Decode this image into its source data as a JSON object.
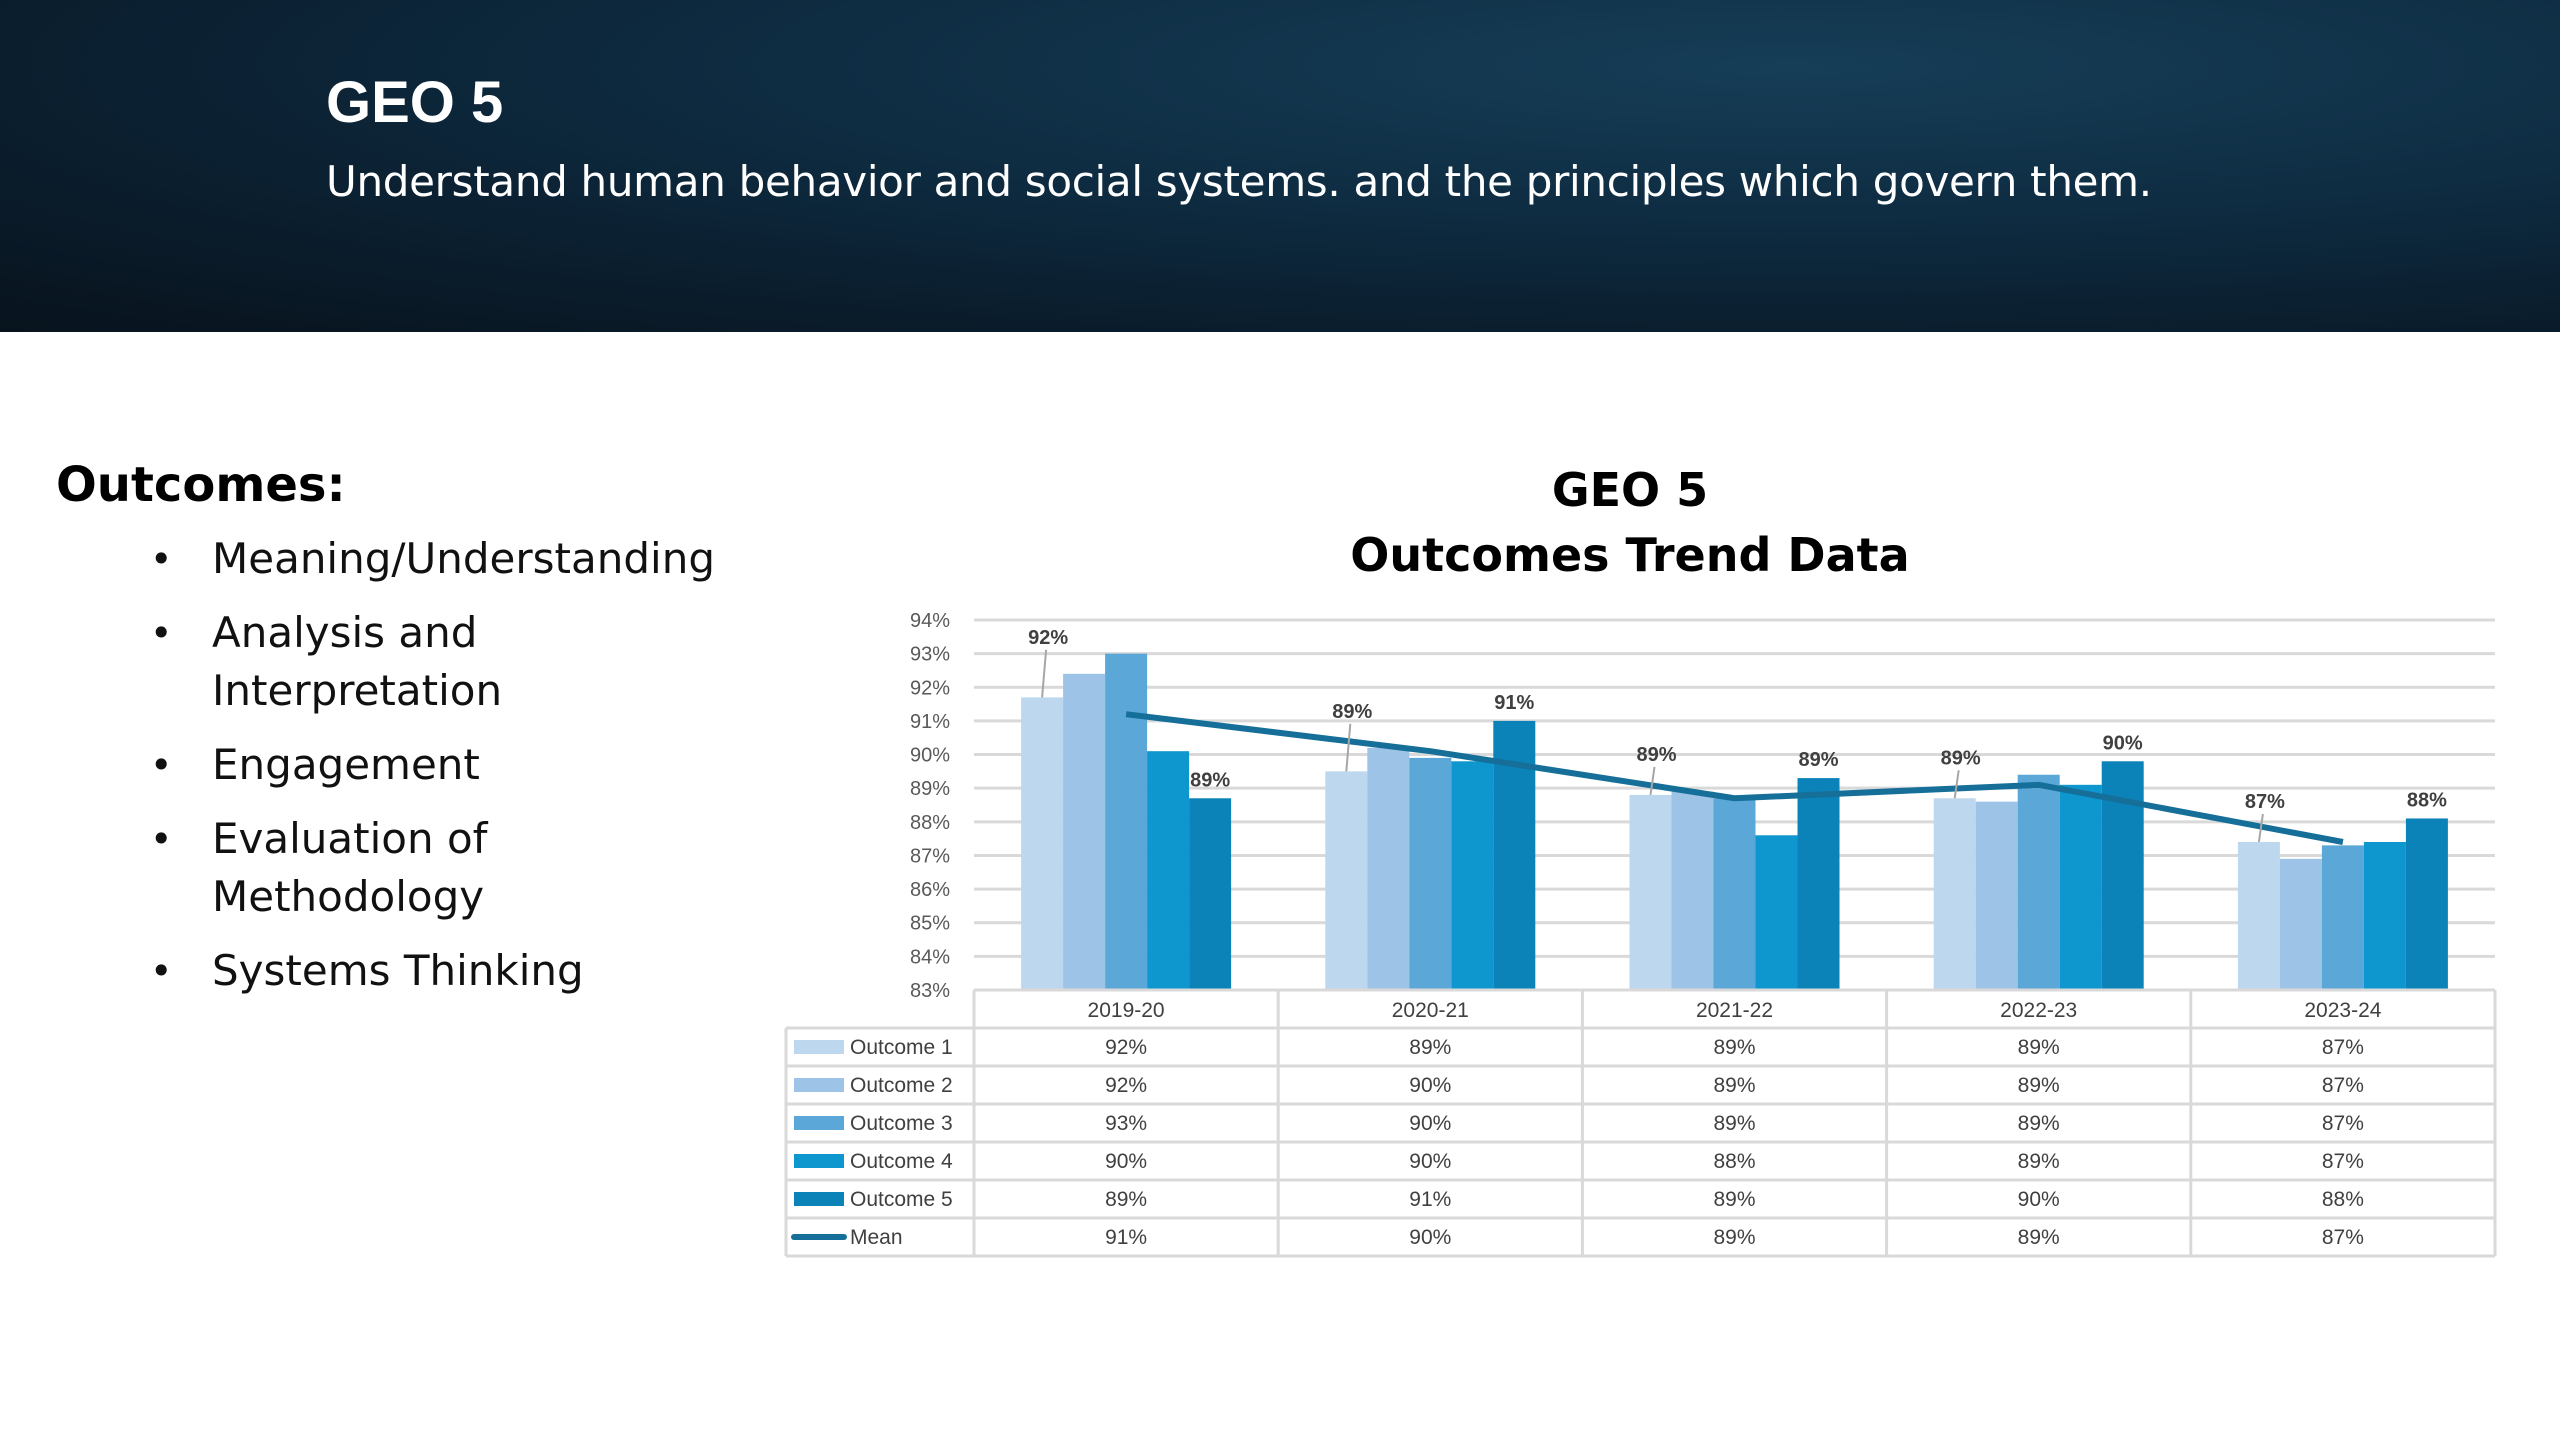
{
  "header": {
    "title": "GEO 5",
    "subtitle": "Understand human behavior and social systems. and the principles which govern them."
  },
  "outcomes": {
    "heading": "Outcomes:",
    "items": [
      "Meaning/Understanding",
      "Analysis and Interpretation",
      "Engagement",
      "Evaluation of Methodology",
      "Systems Thinking"
    ]
  },
  "chart_data": {
    "type": "bar",
    "title": "GEO 5",
    "subtitle": "Outcomes Trend Data",
    "categories": [
      "2019-20",
      "2020-21",
      "2021-22",
      "2022-23",
      "2023-24"
    ],
    "ylim": [
      0.83,
      0.94
    ],
    "y_ticks": [
      "94%",
      "93%",
      "92%",
      "91%",
      "90%",
      "89%",
      "88%",
      "87%",
      "86%",
      "85%",
      "84%",
      "83%"
    ],
    "grid": true,
    "legend": "data-table",
    "series": [
      {
        "name": "Outcome 1",
        "color": "#bdd7ee",
        "type": "bar",
        "values": [
          0.917,
          0.895,
          0.888,
          0.887,
          0.874
        ],
        "labels": [
          "92%",
          "89%",
          "89%",
          "89%",
          "87%"
        ]
      },
      {
        "name": "Outcome 2",
        "color": "#9dc3e6",
        "type": "bar",
        "values": [
          0.924,
          0.902,
          0.889,
          0.886,
          0.869
        ],
        "labels": [
          "92%",
          "90%",
          "89%",
          "89%",
          "87%"
        ]
      },
      {
        "name": "Outcome 3",
        "color": "#5ba8d8",
        "type": "bar",
        "values": [
          0.93,
          0.899,
          0.887,
          0.894,
          0.873
        ],
        "labels": [
          "93%",
          "90%",
          "89%",
          "89%",
          "87%"
        ]
      },
      {
        "name": "Outcome 4",
        "color": "#0e97cf",
        "type": "bar",
        "values": [
          0.901,
          0.898,
          0.876,
          0.891,
          0.874
        ],
        "labels": [
          "90%",
          "90%",
          "88%",
          "89%",
          "87%"
        ]
      },
      {
        "name": "Outcome 5",
        "color": "#0b83b8",
        "type": "bar",
        "values": [
          0.887,
          0.91,
          0.893,
          0.898,
          0.881
        ],
        "labels": [
          "89%",
          "91%",
          "89%",
          "90%",
          "88%"
        ]
      },
      {
        "name": "Mean",
        "color": "#156f99",
        "type": "line",
        "values": [
          0.912,
          0.901,
          0.887,
          0.891,
          0.874
        ],
        "labels": [
          "91%",
          "90%",
          "89%",
          "89%",
          "87%"
        ]
      }
    ],
    "data_labels": [
      {
        "series": 0,
        "category": 0,
        "text": "92%"
      },
      {
        "series": 4,
        "category": 0,
        "text": "89%"
      },
      {
        "series": 0,
        "category": 1,
        "text": "89%"
      },
      {
        "series": 4,
        "category": 1,
        "text": "91%"
      },
      {
        "series": 0,
        "category": 2,
        "text": "89%"
      },
      {
        "series": 4,
        "category": 2,
        "text": "89%"
      },
      {
        "series": 0,
        "category": 3,
        "text": "89%"
      },
      {
        "series": 4,
        "category": 3,
        "text": "90%"
      },
      {
        "series": 0,
        "category": 4,
        "text": "87%"
      },
      {
        "series": 4,
        "category": 4,
        "text": "88%"
      }
    ]
  }
}
